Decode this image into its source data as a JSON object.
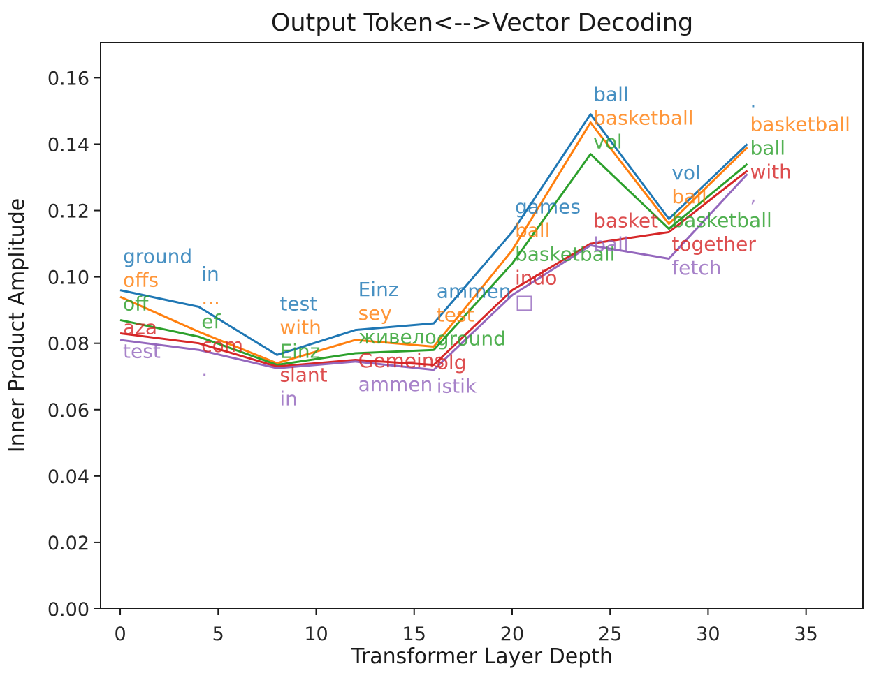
{
  "chart_data": {
    "type": "line",
    "title": "Output Token<-->Vector Decoding",
    "xlabel": "Transformer Layer Depth",
    "ylabel": "Inner Product Amplitude",
    "x": [
      0,
      4,
      8,
      12,
      16,
      20,
      24,
      28,
      32
    ],
    "xticks": [
      0,
      5,
      10,
      15,
      20,
      25,
      30,
      35
    ],
    "yticks": [
      0.0,
      0.02,
      0.04,
      0.06,
      0.08,
      0.1,
      0.12,
      0.14,
      0.16
    ],
    "xlim": [
      -1,
      37.9
    ],
    "ylim": [
      0,
      0.1706
    ],
    "grid": false,
    "legend": "none",
    "annotation_style": "token-text-at-each-point",
    "series": [
      {
        "name": "series-blue",
        "color": "#1f77b4",
        "values": [
          0.096,
          0.091,
          0.0765,
          0.084,
          0.086,
          0.1135,
          0.149,
          0.1175,
          0.14
        ],
        "labels": [
          "ground",
          "in",
          "test",
          "Einz",
          "ammen",
          "games",
          "ball",
          "vol",
          "."
        ]
      },
      {
        "name": "series-orange",
        "color": "#ff7f0e",
        "values": [
          0.094,
          0.0835,
          0.074,
          0.081,
          0.079,
          0.108,
          0.1465,
          0.116,
          0.139
        ],
        "labels": [
          "offs",
          "...",
          "with",
          "sey",
          "test",
          "ball",
          "basketball",
          "ball",
          "basketball"
        ]
      },
      {
        "name": "series-green",
        "color": "#2ca02c",
        "values": [
          0.087,
          0.082,
          0.0735,
          0.077,
          0.078,
          0.104,
          0.137,
          0.1145,
          0.134
        ],
        "labels": [
          "off",
          "ef",
          "Einz",
          "живело",
          "ground",
          "basketball",
          "vol",
          "basketball",
          "ball"
        ]
      },
      {
        "name": "series-red",
        "color": "#d62728",
        "values": [
          0.083,
          0.08,
          0.073,
          0.075,
          0.0735,
          0.096,
          0.11,
          0.1135,
          0.132
        ],
        "labels": [
          "aza",
          "com",
          "slant",
          "Gemeins",
          "olg",
          "indo",
          "basket",
          "together",
          "with"
        ]
      },
      {
        "name": "series-purple",
        "color": "#9467bd",
        "values": [
          0.081,
          0.078,
          0.0725,
          0.0745,
          0.072,
          0.0945,
          0.1095,
          0.1055,
          0.131
        ],
        "labels": [
          "test",
          ".",
          "in",
          "ammen",
          "istik",
          "□",
          "ball",
          "fetch",
          ","
        ]
      }
    ]
  }
}
